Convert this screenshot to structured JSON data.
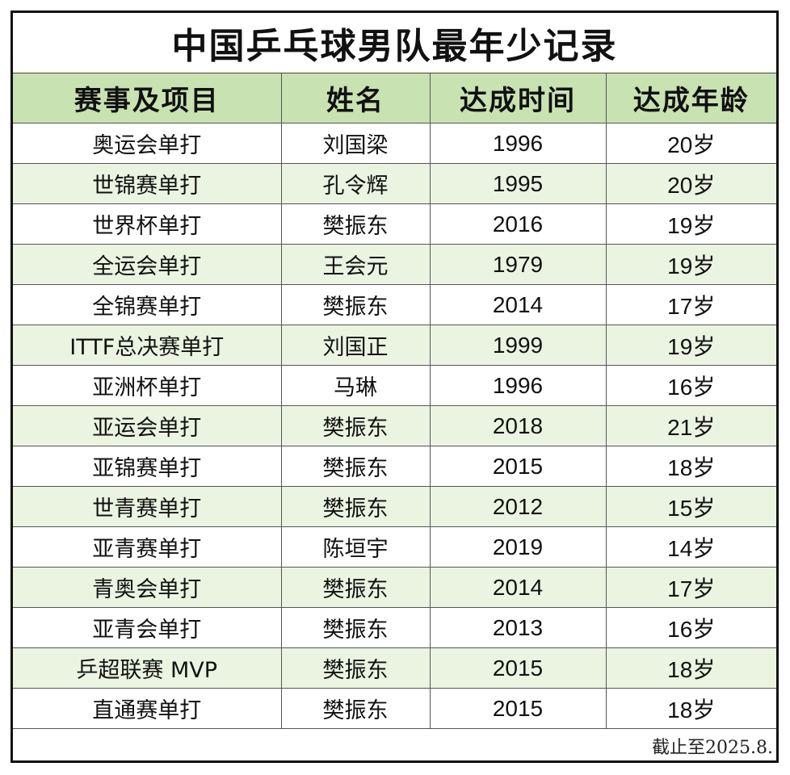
{
  "title": "中国乒乓球男队最年少记录",
  "columns": [
    "赛事及项目",
    "姓名",
    "达成时间",
    "达成年龄"
  ],
  "rows": [
    {
      "event": "奥运会单打",
      "name": "刘国梁",
      "year": "1996",
      "age": "20岁"
    },
    {
      "event": "世锦赛单打",
      "name": "孔令辉",
      "year": "1995",
      "age": "20岁"
    },
    {
      "event": "世界杯单打",
      "name": "樊振东",
      "year": "2016",
      "age": "19岁"
    },
    {
      "event": "全运会单打",
      "name": "王会元",
      "year": "1979",
      "age": "19岁"
    },
    {
      "event": "全锦赛单打",
      "name": "樊振东",
      "year": "2014",
      "age": "17岁"
    },
    {
      "event": "ITTF总决赛单打",
      "name": "刘国正",
      "year": "1999",
      "age": "19岁"
    },
    {
      "event": "亚洲杯单打",
      "name": "马琳",
      "year": "1996",
      "age": "16岁"
    },
    {
      "event": "亚运会单打",
      "name": "樊振东",
      "year": "2018",
      "age": "21岁"
    },
    {
      "event": "亚锦赛单打",
      "name": "樊振东",
      "year": "2015",
      "age": "18岁"
    },
    {
      "event": "世青赛单打",
      "name": "樊振东",
      "year": "2012",
      "age": "15岁"
    },
    {
      "event": "亚青赛单打",
      "name": "陈垣宇",
      "year": "2019",
      "age": "14岁"
    },
    {
      "event": "青奥会单打",
      "name": "樊振东",
      "year": "2014",
      "age": "17岁"
    },
    {
      "event": "亚青会单打",
      "name": "樊振东",
      "year": "2013",
      "age": "16岁"
    },
    {
      "event": "乒超联赛 MVP",
      "name": "樊振东",
      "year": "2015",
      "age": "18岁"
    },
    {
      "event": "直通赛单打",
      "name": "樊振东",
      "year": "2015",
      "age": "18岁"
    }
  ],
  "footnote": "截止至2025.8.",
  "colors": {
    "header_bg": "#c8e2b2",
    "stripe_bg": "#ebf4e1",
    "border": "#111111"
  }
}
